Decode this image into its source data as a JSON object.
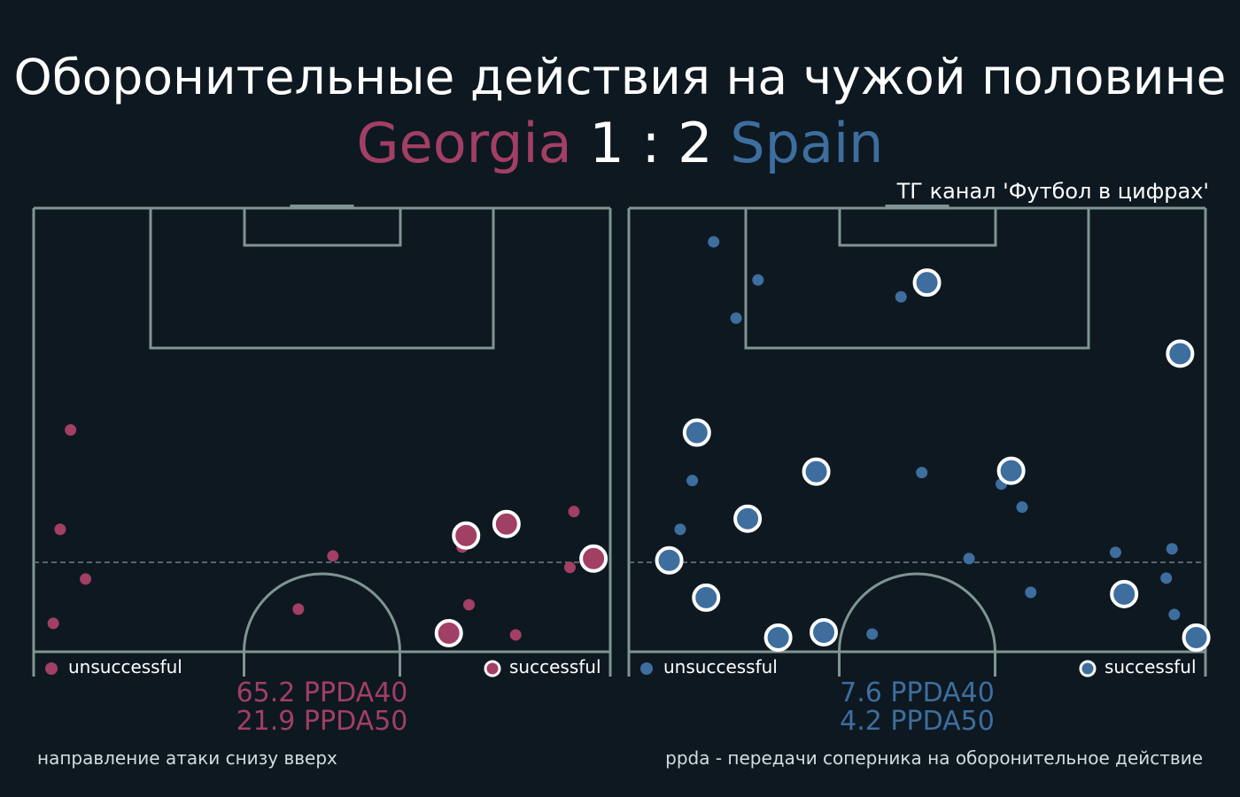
{
  "title": "Оборонительные действия на чужой половине",
  "match": {
    "home_team": "Georgia",
    "away_team": "Spain",
    "score": "1 : 2"
  },
  "channel": "ТГ канал 'Футбол в цифрах'",
  "footer": {
    "left": "направление атаки снизу вверх",
    "right": "ppda - передачи соперника на оборонительное действие"
  },
  "colors": {
    "background": "#0e1821",
    "pitch_lines": "#7f9591",
    "home": "#a23f64",
    "away": "#3d6e9e",
    "marker_edge": "#ffffff"
  },
  "chart_data": [
    {
      "type": "scatter",
      "team": "Georgia",
      "color": "#a23f64",
      "xlim": [
        0,
        100
      ],
      "ylim": [
        50,
        100
      ],
      "legend": {
        "unsuccessful": "unsuccessful",
        "successful": "successful"
      },
      "ppda40": "65.2 PPDA40",
      "ppda50": "21.9 PPDA50",
      "unsuccessful": [
        {
          "x": 6.4,
          "y": 75.0
        },
        {
          "x": 4.6,
          "y": 63.8
        },
        {
          "x": 9.0,
          "y": 58.2
        },
        {
          "x": 3.4,
          "y": 53.2
        },
        {
          "x": 51.9,
          "y": 60.8
        },
        {
          "x": 45.9,
          "y": 54.8
        },
        {
          "x": 74.3,
          "y": 61.8
        },
        {
          "x": 75.5,
          "y": 55.3
        },
        {
          "x": 83.6,
          "y": 51.9
        },
        {
          "x": 93.7,
          "y": 65.8
        },
        {
          "x": 93.0,
          "y": 59.5
        }
      ],
      "successful": [
        {
          "x": 75.0,
          "y": 63.1
        },
        {
          "x": 82.0,
          "y": 64.4
        },
        {
          "x": 97.1,
          "y": 60.5
        },
        {
          "x": 72.0,
          "y": 52.1
        }
      ]
    },
    {
      "type": "scatter",
      "team": "Spain",
      "color": "#3d6e9e",
      "xlim": [
        0,
        100
      ],
      "ylim": [
        50,
        100
      ],
      "legend": {
        "unsuccessful": "unsuccessful",
        "successful": "successful"
      },
      "ppda40": "7.6 PPDA40",
      "ppda50": "4.2 PPDA50",
      "unsuccessful": [
        {
          "x": 14.7,
          "y": 96.2
        },
        {
          "x": 22.4,
          "y": 91.9
        },
        {
          "x": 18.6,
          "y": 87.6
        },
        {
          "x": 47.2,
          "y": 90.0
        },
        {
          "x": 11.0,
          "y": 69.3
        },
        {
          "x": 8.9,
          "y": 63.8
        },
        {
          "x": 50.8,
          "y": 70.2
        },
        {
          "x": 64.6,
          "y": 68.9
        },
        {
          "x": 68.2,
          "y": 66.3
        },
        {
          "x": 59.0,
          "y": 60.5
        },
        {
          "x": 69.7,
          "y": 56.7
        },
        {
          "x": 42.2,
          "y": 52.0
        },
        {
          "x": 84.4,
          "y": 61.2
        },
        {
          "x": 94.2,
          "y": 61.6
        },
        {
          "x": 93.2,
          "y": 58.3
        },
        {
          "x": 94.6,
          "y": 54.2
        }
      ],
      "successful": [
        {
          "x": 51.7,
          "y": 91.6
        },
        {
          "x": 95.6,
          "y": 83.6
        },
        {
          "x": 11.8,
          "y": 74.7
        },
        {
          "x": 32.5,
          "y": 70.3
        },
        {
          "x": 20.6,
          "y": 65.0
        },
        {
          "x": 66.3,
          "y": 70.4
        },
        {
          "x": 7.0,
          "y": 60.3
        },
        {
          "x": 13.4,
          "y": 56.1
        },
        {
          "x": 25.9,
          "y": 51.6
        },
        {
          "x": 33.8,
          "y": 52.2
        },
        {
          "x": 85.9,
          "y": 56.5
        },
        {
          "x": 98.4,
          "y": 51.6
        }
      ]
    }
  ]
}
